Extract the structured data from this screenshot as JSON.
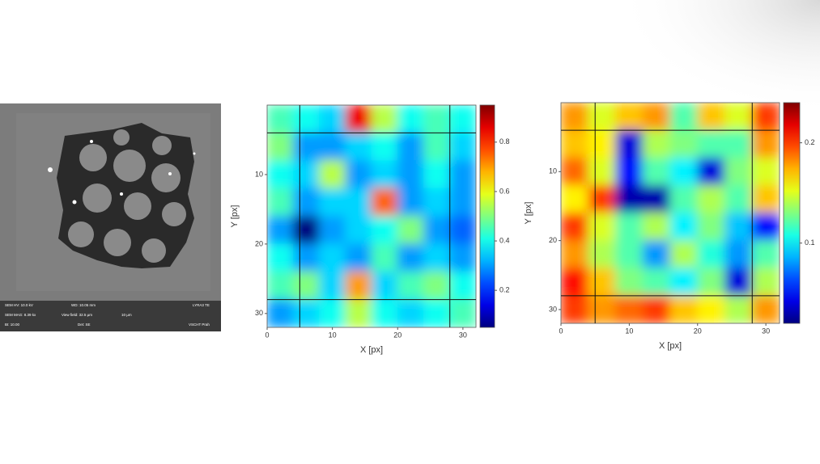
{
  "sem_panel": {
    "lines": [
      "SEM HV: 10.0 kV",
      "WD: 10.05 mm",
      "LYRA3 TE",
      "SEM MAG: 8.39 kx",
      "View field: 32.5 µm",
      "10 µm",
      "BI: 10.00",
      "Det: SE",
      "VSCHT Prah"
    ]
  },
  "chart_data": [
    {
      "type": "heatmap",
      "xlabel": "X [px]",
      "ylabel": "Y [px]",
      "colormap": "jet",
      "xlim": [
        0,
        32
      ],
      "ylim": [
        0,
        32
      ],
      "y_inverted": true,
      "xticks": [
        0,
        10,
        20,
        30
      ],
      "yticks": [
        10,
        20,
        30
      ],
      "zlim": [
        0.05,
        0.95
      ],
      "zticks": [
        0.2,
        0.4,
        0.6,
        0.8
      ],
      "guide_lines": {
        "x": [
          5,
          28
        ],
        "y": [
          4,
          28
        ]
      },
      "z": [
        [
          0.45,
          0.4,
          0.35,
          0.85,
          0.55,
          0.4,
          0.45,
          0.4
        ],
        [
          0.5,
          0.3,
          0.3,
          0.35,
          0.4,
          0.3,
          0.45,
          0.35
        ],
        [
          0.4,
          0.35,
          0.55,
          0.3,
          0.35,
          0.3,
          0.4,
          0.3
        ],
        [
          0.45,
          0.3,
          0.35,
          0.35,
          0.75,
          0.3,
          0.35,
          0.3
        ],
        [
          0.3,
          0.05,
          0.3,
          0.35,
          0.4,
          0.5,
          0.3,
          0.25
        ],
        [
          0.4,
          0.3,
          0.35,
          0.3,
          0.45,
          0.3,
          0.35,
          0.3
        ],
        [
          0.45,
          0.5,
          0.35,
          0.7,
          0.35,
          0.45,
          0.5,
          0.4
        ],
        [
          0.3,
          0.35,
          0.4,
          0.55,
          0.4,
          0.35,
          0.4,
          0.45
        ]
      ]
    },
    {
      "type": "heatmap",
      "xlabel": "X [px]",
      "ylabel": "Y [px]",
      "colormap": "jet",
      "xlim": [
        0,
        32
      ],
      "ylim": [
        0,
        32
      ],
      "y_inverted": true,
      "xticks": [
        0,
        10,
        20,
        30
      ],
      "yticks": [
        10,
        20,
        30
      ],
      "zlim": [
        0.02,
        0.24
      ],
      "zticks": [
        0.1,
        0.2
      ],
      "guide_lines": {
        "x": [
          5,
          28
        ],
        "y": [
          4,
          28
        ]
      },
      "z": [
        [
          0.18,
          0.15,
          0.17,
          0.18,
          0.12,
          0.17,
          0.15,
          0.2
        ],
        [
          0.17,
          0.16,
          0.04,
          0.14,
          0.13,
          0.12,
          0.12,
          0.18
        ],
        [
          0.19,
          0.15,
          0.05,
          0.12,
          0.1,
          0.04,
          0.13,
          0.15
        ],
        [
          0.16,
          0.2,
          0.03,
          0.03,
          0.12,
          0.14,
          0.12,
          0.17
        ],
        [
          0.2,
          0.15,
          0.12,
          0.14,
          0.1,
          0.13,
          0.09,
          0.05
        ],
        [
          0.18,
          0.14,
          0.12,
          0.08,
          0.14,
          0.11,
          0.08,
          0.12
        ],
        [
          0.21,
          0.17,
          0.13,
          0.12,
          0.1,
          0.13,
          0.04,
          0.14
        ],
        [
          0.2,
          0.18,
          0.19,
          0.2,
          0.17,
          0.16,
          0.14,
          0.18
        ]
      ]
    }
  ]
}
